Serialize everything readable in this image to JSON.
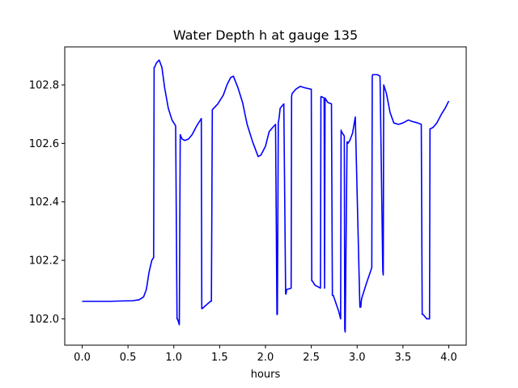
{
  "chart_data": {
    "type": "line",
    "title": "Water Depth h at gauge 135",
    "xlabel": "hours",
    "ylabel": "",
    "xlim": [
      -0.19,
      4.19
    ],
    "ylim": [
      101.91,
      102.93
    ],
    "grid": false,
    "x_ticks": [
      0.0,
      0.5,
      1.0,
      1.5,
      2.0,
      2.5,
      3.0,
      3.5,
      4.0
    ],
    "x_tick_labels": [
      "0.0",
      "0.5",
      "1.0",
      "1.5",
      "2.0",
      "2.5",
      "3.0",
      "3.5",
      "4.0"
    ],
    "y_ticks": [
      102.0,
      102.2,
      102.4,
      102.6,
      102.8
    ],
    "y_tick_labels": [
      "102.0",
      "102.2",
      "102.4",
      "102.6",
      "102.8"
    ],
    "series": [
      {
        "color": "#0000ff",
        "x": [
          0.0,
          0.3,
          0.55,
          0.62,
          0.67,
          0.7,
          0.73,
          0.76,
          0.78,
          0.785,
          0.79,
          0.81,
          0.84,
          0.87,
          0.9,
          0.94,
          0.98,
          1.02,
          1.035,
          1.04,
          1.06,
          1.07,
          1.09,
          1.12,
          1.16,
          1.2,
          1.25,
          1.3,
          1.305,
          1.31,
          1.4,
          1.41,
          1.42,
          1.48,
          1.54,
          1.58,
          1.62,
          1.65,
          1.7,
          1.75,
          1.8,
          1.86,
          1.92,
          1.95,
          2.0,
          2.04,
          2.08,
          2.11,
          2.125,
          2.13,
          2.14,
          2.15,
          2.16,
          2.2,
          2.22,
          2.225,
          2.23,
          2.28,
          2.285,
          2.29,
          2.33,
          2.38,
          2.43,
          2.5,
          2.505,
          2.51,
          2.54,
          2.6,
          2.605,
          2.61,
          2.64,
          2.645,
          2.65,
          2.68,
          2.72,
          2.73,
          2.74,
          2.8,
          2.82,
          2.825,
          2.83,
          2.86,
          2.865,
          2.87,
          2.89,
          2.895,
          2.9,
          2.92,
          2.95,
          2.98,
          3.03,
          3.04,
          3.045,
          3.05,
          3.1,
          3.16,
          3.165,
          3.17,
          3.22,
          3.25,
          3.28,
          3.285,
          3.29,
          3.32,
          3.36,
          3.4,
          3.45,
          3.5,
          3.56,
          3.6,
          3.66,
          3.7,
          3.71,
          3.72,
          3.76,
          3.79,
          3.795,
          3.8,
          3.83,
          3.87,
          3.92,
          3.96,
          4.0
        ],
        "y": [
          102.06,
          102.06,
          102.062,
          102.065,
          102.075,
          102.1,
          102.16,
          102.2,
          102.21,
          102.86,
          102.86,
          102.875,
          102.885,
          102.86,
          102.79,
          102.72,
          102.68,
          102.66,
          102.0,
          102.0,
          101.98,
          102.63,
          102.615,
          102.61,
          102.615,
          102.63,
          102.66,
          102.685,
          102.035,
          102.035,
          102.06,
          102.06,
          102.715,
          102.735,
          102.765,
          102.8,
          102.825,
          102.83,
          102.79,
          102.74,
          102.665,
          102.605,
          102.555,
          102.56,
          102.59,
          102.64,
          102.655,
          102.665,
          102.015,
          102.015,
          102.67,
          102.69,
          102.72,
          102.735,
          102.085,
          102.085,
          102.1,
          102.105,
          102.76,
          102.77,
          102.785,
          102.795,
          102.79,
          102.785,
          102.13,
          102.13,
          102.115,
          102.105,
          102.76,
          102.76,
          102.755,
          102.105,
          102.755,
          102.74,
          102.735,
          102.08,
          102.08,
          102.025,
          102.0,
          102.645,
          102.64,
          102.625,
          101.965,
          101.955,
          102.605,
          102.605,
          102.6,
          102.61,
          102.635,
          102.69,
          102.04,
          102.04,
          102.06,
          102.07,
          102.12,
          102.175,
          102.83,
          102.835,
          102.835,
          102.83,
          102.165,
          102.15,
          102.8,
          102.77,
          102.705,
          102.67,
          102.665,
          102.67,
          102.68,
          102.675,
          102.67,
          102.665,
          102.015,
          102.015,
          102.0,
          102.0,
          102.65,
          102.65,
          102.655,
          102.67,
          102.7,
          102.72,
          102.745
        ]
      }
    ]
  }
}
